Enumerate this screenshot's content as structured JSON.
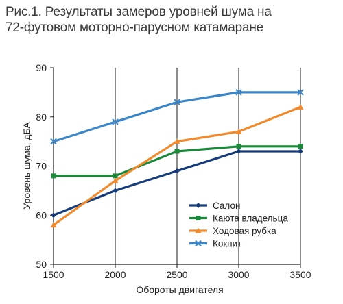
{
  "chart_data": {
    "type": "line",
    "title_lines": [
      "Рис.1. Результаты замеров уровней шума на",
      "72-футовом моторно-парусном катамаране"
    ],
    "xlabel": "Обороты двигателя",
    "ylabel": "Уровень шума, дБА",
    "x": [
      1500,
      2000,
      2500,
      3000,
      3500
    ],
    "x_ticks": [
      "1500",
      "2000",
      "2500",
      "3000",
      "3500"
    ],
    "y_ticks": [
      "50",
      "60",
      "70",
      "80",
      "90"
    ],
    "xlim": [
      1500,
      3500
    ],
    "ylim": [
      50,
      90
    ],
    "grid": "vertical",
    "legend_position": "bottom-right",
    "series": [
      {
        "name": "Салон",
        "values": [
          60,
          65,
          69,
          73,
          73
        ],
        "color": "#163d7a",
        "marker": "diamond"
      },
      {
        "name": "Каюта владельца",
        "values": [
          68,
          68,
          73,
          74,
          74
        ],
        "color": "#1a8a3a",
        "marker": "square"
      },
      {
        "name": "Ходовая рубка",
        "values": [
          58,
          67,
          75,
          77,
          82
        ],
        "color": "#f08a2c",
        "marker": "triangle"
      },
      {
        "name": "Кокпит",
        "values": [
          75,
          79,
          83,
          85,
          85
        ],
        "color": "#3a86c8",
        "marker": "x"
      }
    ]
  }
}
